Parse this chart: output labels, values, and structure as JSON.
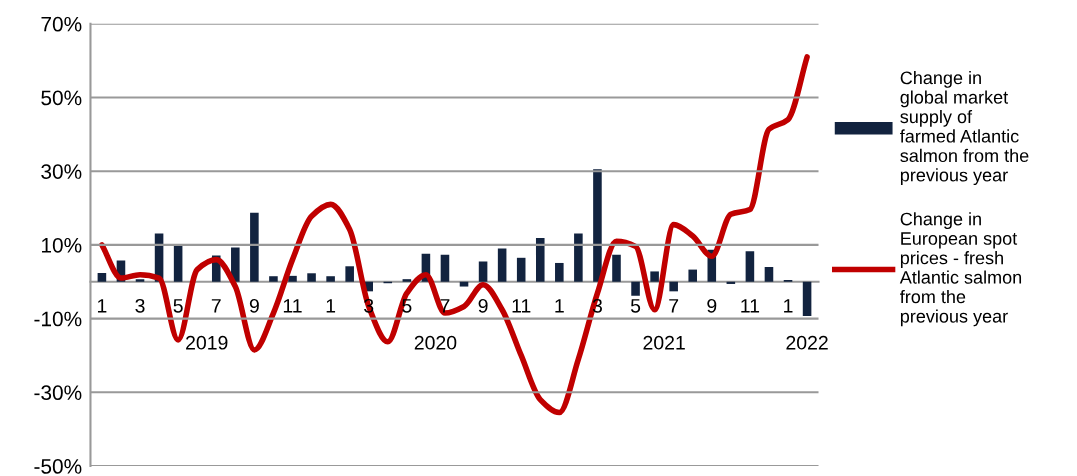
{
  "chart_data": {
    "type": "bar",
    "categories": [
      "1",
      null,
      "3",
      null,
      "5",
      null,
      "7",
      null,
      "9",
      null,
      "11",
      null,
      "1",
      null,
      "3",
      null,
      "5",
      null,
      "7",
      null,
      "9",
      null,
      "11",
      null,
      "1",
      null,
      "3",
      null,
      "5",
      null,
      "7",
      null,
      "9",
      null,
      "11",
      null,
      "1",
      null
    ],
    "series": [
      {
        "name": "Change in\nglobal market\nsupply of\nfarmed Atlantic\nsalmon from the\nprevious year",
        "color": "#12233f",
        "values": [
          2.4,
          5.8,
          0.7,
          13.1,
          9.8,
          0,
          7.1,
          9.3,
          18.7,
          1.5,
          1.6,
          2.3,
          1.5,
          4.2,
          -2.6,
          -0.4,
          0.7,
          7.6,
          7.3,
          -1.3,
          5.5,
          9.0,
          6.5,
          11.9,
          5.1,
          13.1,
          30.5,
          7.3,
          -3.8,
          2.8,
          -2.6,
          3.3,
          8.7,
          -0.6,
          8.3,
          4.0,
          0.5,
          -9.3
        ]
      },
      {
        "name": "Change in\nEuropean spot\nprices - fresh\nAtlantic salmon\nfrom the\nprevious year",
        "color": "#c00000",
        "type": "line",
        "values": [
          10,
          1,
          1.9,
          1,
          -15.8,
          3.3,
          6,
          -1.3,
          -18.5,
          -8.5,
          6,
          17.8,
          21,
          14.2,
          -6.7,
          -16.3,
          -3.1,
          1.9,
          -8.5,
          -6.7,
          -0.8,
          -7.6,
          -20,
          -32,
          -35.5,
          -21,
          -3.1,
          11,
          9.6,
          -7.6,
          15.5,
          12.4,
          6.9,
          18.3,
          19.6,
          41.4,
          44,
          61
        ]
      }
    ],
    "annotations": [
      "2019",
      "2020",
      "2021",
      "2022"
    ],
    "ylim": [
      -50,
      70
    ],
    "yticks": [
      {
        "value": -50,
        "label": "-50%"
      },
      {
        "value": -30,
        "label": "-30%"
      },
      {
        "value": -10,
        "label": "-10%"
      },
      {
        "value": 10,
        "label": "10%"
      },
      {
        "value": 30,
        "label": "30%"
      },
      {
        "value": 50,
        "label": "50%"
      },
      {
        "value": 70,
        "label": "70%"
      }
    ],
    "grid": "y",
    "legend": "right"
  }
}
